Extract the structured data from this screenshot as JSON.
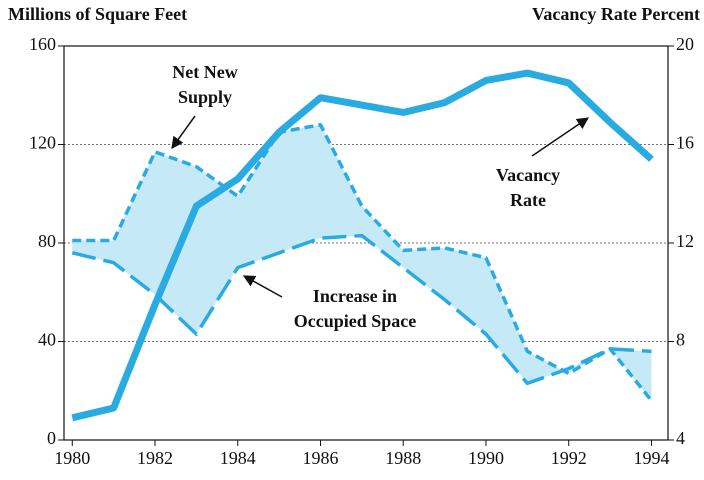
{
  "chart_data": {
    "type": "line",
    "y_label": "Millions of Square Feet",
    "y2_label": "Vacancy Rate Percent",
    "x": [
      1980,
      1981,
      1982,
      1983,
      1984,
      1985,
      1986,
      1987,
      1988,
      1989,
      1990,
      1991,
      1992,
      1993,
      1994
    ],
    "xlim": [
      1979.8,
      1994.4
    ],
    "xticks": [
      1980,
      1982,
      1984,
      1986,
      1988,
      1990,
      1992,
      1994
    ],
    "ylim": [
      0,
      160
    ],
    "yticks": [
      0,
      40,
      80,
      120,
      160
    ],
    "y2lim": [
      4,
      20
    ],
    "y2ticks": [
      4,
      8,
      12,
      16,
      20
    ],
    "grid": true,
    "fill_color": "#c6e9f8",
    "series": [
      {
        "color": "#29abe2",
        "dash": "short",
        "values": [
          81,
          81,
          117,
          111,
          99,
          125,
          128,
          95,
          77,
          78,
          74,
          36,
          27,
          37,
          16
        ]
      },
      {
        "color": "#29abe2",
        "dash": "long",
        "values": [
          76,
          72,
          59,
          43,
          70,
          76,
          82,
          83,
          70,
          57,
          43,
          23,
          29,
          37,
          36
        ]
      },
      {
        "color": "#29abe2",
        "dash": "solid",
        "axis": "y2",
        "values": [
          4.9,
          5.3,
          9.5,
          13.5,
          14.6,
          16.5,
          17.9,
          17.6,
          17.3,
          17.7,
          18.6,
          18.9,
          18.5,
          16.9,
          15.4
        ]
      }
    ],
    "annotations": [
      {
        "lines": [
          "Net New",
          "Supply"
        ]
      },
      {
        "lines": [
          "Vacancy",
          "Rate"
        ]
      },
      {
        "lines": [
          "Increase in",
          "Occupied Space"
        ]
      }
    ]
  }
}
